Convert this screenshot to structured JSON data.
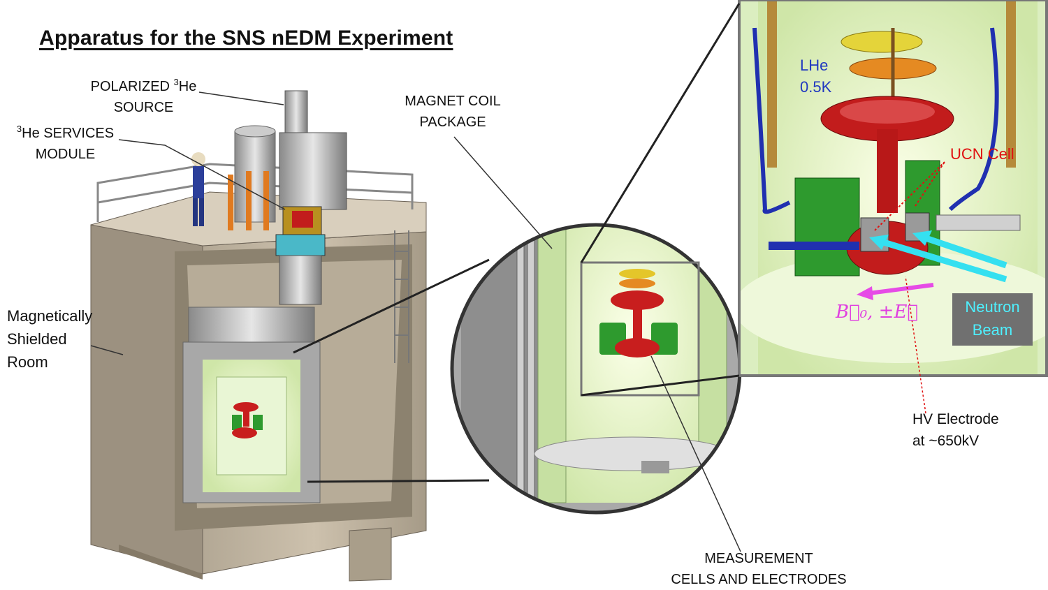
{
  "title": "Apparatus for the SNS nEDM Experiment",
  "labels": {
    "polarized_source_line1_pre": "POLARIZED ",
    "polarized_source_sup": "3",
    "polarized_source_line1_post": "He",
    "polarized_source_line2": "SOURCE",
    "services_sup": "3",
    "services_line1_post": "He SERVICES",
    "services_line2": "MODULE",
    "magnet_line1": "MAGNET COIL",
    "magnet_line2": "PACKAGE",
    "shielded_line1": "Magnetically",
    "shielded_line2": "Shielded",
    "shielded_line3": "Room",
    "measurement_line1": "MEASUREMENT",
    "measurement_line2": "CELLS AND ELECTRODES"
  },
  "inset": {
    "lhe_line1": "LHe",
    "lhe_line2": "0.5K",
    "ucn_cell": "UCN Cell",
    "neutron_line1": "Neutron",
    "neutron_line2": "Beam",
    "field_label": "B⃗₀, ±E⃗",
    "hv_line1": "HV Electrode",
    "hv_line2": "at ~650kV"
  },
  "colors": {
    "shield_room": "#c4b8a4",
    "cryostat_green": "#d8efb8",
    "measurement_cell_red": "#c81e1e",
    "electrode_green": "#2e9a2e",
    "neutron_beam": "#35e0f0",
    "field_arrow": "#e64be6",
    "ucn_label": "#e01010",
    "lhe_label": "#2038c0"
  }
}
